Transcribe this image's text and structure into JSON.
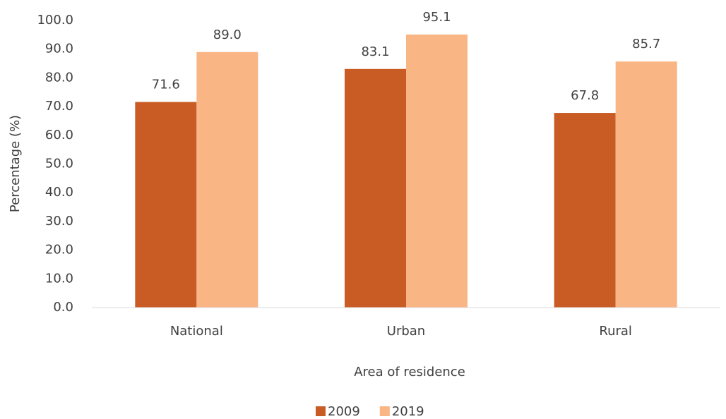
{
  "chart_data": {
    "type": "bar",
    "categories": [
      "National",
      "Urban",
      "Rural"
    ],
    "series": [
      {
        "name": "2009",
        "color": "#c95b24",
        "values": [
          71.6,
          83.1,
          67.8
        ],
        "value_labels": [
          "71.6",
          "83.1",
          "67.8"
        ]
      },
      {
        "name": "2019",
        "color": "#f9b584",
        "values": [
          89.0,
          95.1,
          85.7
        ],
        "value_labels": [
          "89.0",
          "95.1",
          "85.7"
        ]
      }
    ],
    "x_label": "Area of residence",
    "y_label": "Percentage (%)",
    "ylim": [
      0,
      100
    ],
    "yticks": [
      {
        "value": 0,
        "label": "0.0"
      },
      {
        "value": 10,
        "label": "10.0"
      },
      {
        "value": 20,
        "label": "20.0"
      },
      {
        "value": 30,
        "label": "30.0"
      },
      {
        "value": 40,
        "label": "40.0"
      },
      {
        "value": 50,
        "label": "50.0"
      },
      {
        "value": 60,
        "label": "60.0"
      },
      {
        "value": 70,
        "label": "70.0"
      },
      {
        "value": 80,
        "label": "80.0"
      },
      {
        "value": 90,
        "label": "90.0"
      },
      {
        "value": 100,
        "label": "100.0"
      }
    ],
    "grid": false,
    "legend": "bottom"
  }
}
